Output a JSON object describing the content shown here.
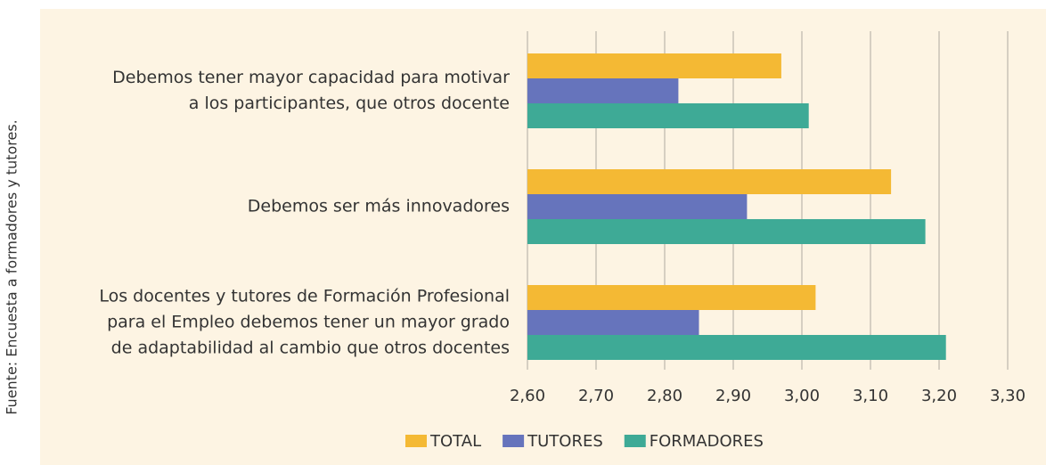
{
  "chart_data": {
    "type": "hbar",
    "source": "Fuente: Encuesta a formadores y tutores.",
    "categories": [
      [
        "Debemos tener mayor capacidad para motivar",
        "a los participantes, que otros docente"
      ],
      [
        "Debemos ser más innovadores"
      ],
      [
        "Los docentes y tutores de Formación Profesional",
        "para el Empleo debemos tener un mayor grado",
        "de adaptabilidad al cambio que otros docentes"
      ]
    ],
    "series": [
      {
        "name": "TOTAL",
        "color": "#f4b934",
        "values": [
          2.97,
          3.13,
          3.02
        ]
      },
      {
        "name": "TUTORES",
        "color": "#6674bc",
        "values": [
          2.82,
          2.92,
          2.85
        ]
      },
      {
        "name": "FORMADORES",
        "color": "#3eaa96",
        "values": [
          3.01,
          3.18,
          3.21
        ]
      }
    ],
    "xlim": [
      2.6,
      3.3
    ],
    "xticks": [
      {
        "value": 2.6,
        "label": "2,60"
      },
      {
        "value": 2.7,
        "label": "2,70"
      },
      {
        "value": 2.8,
        "label": "2,80"
      },
      {
        "value": 2.9,
        "label": "2,90"
      },
      {
        "value": 3.0,
        "label": "3,00"
      },
      {
        "value": 3.1,
        "label": "3,10"
      },
      {
        "value": 3.2,
        "label": "3,20"
      },
      {
        "value": 3.3,
        "label": "3,30"
      }
    ],
    "grid": true,
    "legend": "bottom"
  }
}
